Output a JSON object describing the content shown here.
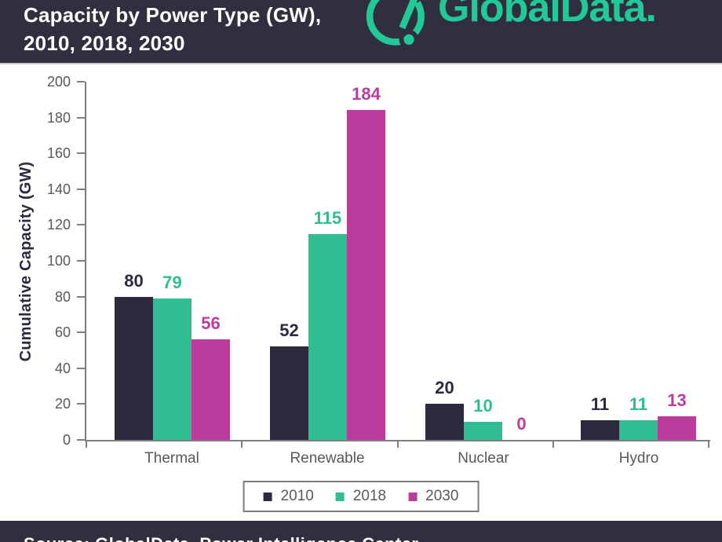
{
  "header": {
    "title_line1": "Capacity by Power Type (GW),",
    "title_line2": "2010, 2018, 2030",
    "logo_text": "GlobalData."
  },
  "footer": {
    "source_text": "Source: GlobalData, Power Intelligence Center"
  },
  "colors": {
    "header_bg": "#312E40",
    "brand_teal": "#22C998",
    "navy": "#2E2A3D",
    "teal": "#2EBE92",
    "magenta": "#BC3C9E",
    "axis_gray": "#7F7F7F",
    "text_gray": "#595959",
    "white": "#FFFFFF"
  },
  "chart_data": {
    "type": "bar",
    "title": "Capacity by Power Type (GW), 2010, 2018, 2030",
    "xlabel": "",
    "ylabel": "Cumulative Capacity (GW)",
    "categories": [
      "Thermal",
      "Renewable",
      "Nuclear",
      "Hydro"
    ],
    "series": [
      {
        "name": "2010",
        "color": "#2E2A3D",
        "values": [
          80,
          52,
          20,
          11
        ]
      },
      {
        "name": "2018",
        "color": "#2EBE92",
        "values": [
          79,
          115,
          10,
          11
        ]
      },
      {
        "name": "2030",
        "color": "#BC3C9E",
        "values": [
          56,
          184,
          0,
          13
        ]
      }
    ],
    "ylim": [
      0,
      200
    ],
    "ytick_step": 20,
    "grid": false,
    "legend_position": "bottom",
    "value_labels": true
  }
}
